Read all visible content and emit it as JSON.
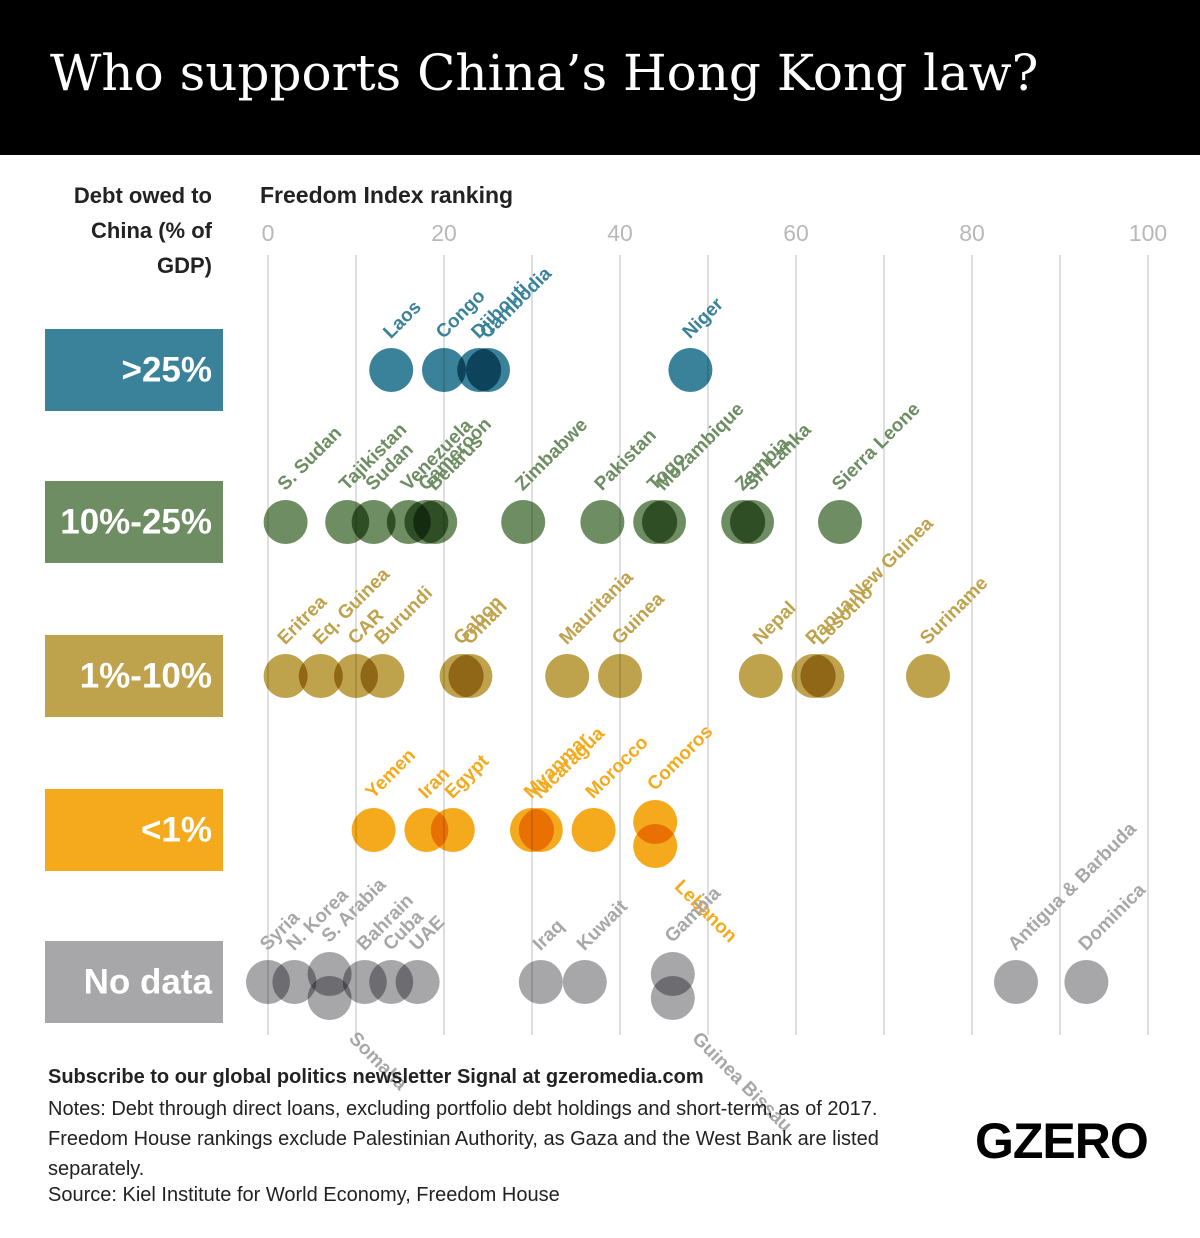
{
  "chart_data": {
    "type": "dot",
    "title": "Who supports China’s Hong Kong law?",
    "x_label": "Freedom Index ranking",
    "y_label": "Debt owed to China (% of GDP)",
    "xlim": [
      0,
      100
    ],
    "xticks": [
      0,
      20,
      40,
      60,
      80,
      100
    ],
    "x_minor_grid": [
      10,
      30,
      50,
      70,
      90
    ],
    "grid": true,
    "series": [
      {
        "name": ">25%",
        "color": "#3a8299",
        "labels": [
          "Laos",
          "Congo",
          "Djibouti",
          "Cambodia",
          "Niger"
        ],
        "values": [
          14,
          20,
          24,
          25,
          48
        ]
      },
      {
        "name": "10%-25%",
        "color": "#6e8d62",
        "labels": [
          "S. Sudan",
          "Tajikistan",
          "Sudan",
          "Venezuela",
          "Cameroon",
          "Belarus",
          "Zimbabwe",
          "Pakistan",
          "Togo",
          "Mozambique",
          "Zambia",
          "Sri Lanka",
          "Sierra Leone"
        ],
        "values": [
          2,
          9,
          12,
          16,
          18,
          19,
          29,
          38,
          44,
          45,
          54,
          55,
          65
        ]
      },
      {
        "name": "1%-10%",
        "color": "#bfa24c",
        "labels": [
          "Eritrea",
          "Eq. Guinea",
          "CAR",
          "Burundi",
          "Gabon",
          "Oman",
          "Mauritania",
          "Guinea",
          "Nepal",
          "Papua New Guinea",
          "Lesotho",
          "Suriname"
        ],
        "values": [
          2,
          6,
          10,
          13,
          22,
          23,
          34,
          40,
          56,
          62,
          63,
          75
        ]
      },
      {
        "name": "<1%",
        "color": "#f4aa1c",
        "labels": [
          "Yemen",
          "Iran",
          "Egypt",
          "Myanmar",
          "Nicaragua",
          "Morocco",
          "Comoros",
          "Lebanon"
        ],
        "values": [
          12,
          18,
          21,
          30,
          31,
          37,
          44,
          44
        ]
      },
      {
        "name": "No data",
        "color": "#a7a7aa",
        "labels": [
          "Syria",
          "N. Korea",
          "S. Arabia",
          "Somalia",
          "Bahrain",
          "Cuba",
          "UAE",
          "Iraq",
          "Kuwait",
          "Gambia",
          "Guinea Bissau",
          "Antigua & Barbuda",
          "Dominica"
        ],
        "values": [
          0,
          3,
          7,
          7,
          11,
          14,
          17,
          31,
          36,
          46,
          46,
          85,
          93
        ]
      }
    ]
  },
  "footer": {
    "subscribe": "Subscribe to our global politics newsletter Signal at gzeromedia.com",
    "notes": "Notes: Debt through direct loans, excluding portfolio debt holdings and short-term, as of 2017. Freedom House rankings exclude Palestinian Authority, as Gaza and the West Bank are listed separately.",
    "source": "Source: Kiel Institute for World Economy, Freedom House",
    "logo": "GZERO"
  }
}
